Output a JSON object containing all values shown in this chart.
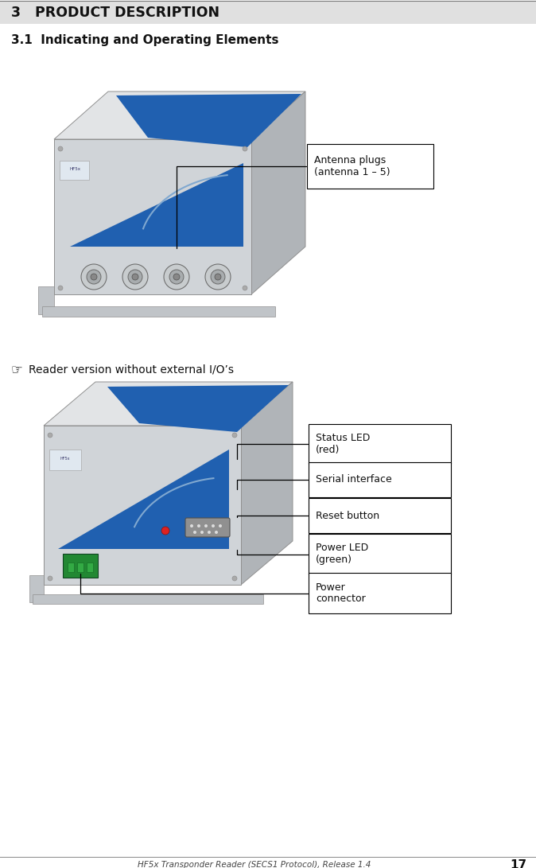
{
  "bg_color": "#ffffff",
  "header_bg": "#e0e0e0",
  "header_text": "3   PRODUCT DESCRIPTION",
  "header_text_color": "#111111",
  "header_fontsize": 12.5,
  "subheader_text": "3.1  Indicating and Operating Elements",
  "subheader_fontsize": 11,
  "reader_note_symbol": "☞",
  "reader_note_text": "Reader version without external I/O’s",
  "reader_note_fontsize": 10,
  "footer_text": "HF5x Transponder Reader (SECS1 Protocol), Release 1.4",
  "footer_page": "17",
  "footer_fontsize": 7.5,
  "box1_label": "Antenna plugs\n(antenna 1 – 5)",
  "box2_labels": [
    "Status LED\n(red)",
    "Serial interface",
    "Reset button",
    "Power LED\n(green)",
    "Power\nconnector"
  ],
  "box_border_color": "#000000",
  "box_bg_color": "#ffffff",
  "line_color": "#000000",
  "dev_front_color": "#d0d4d8",
  "dev_top_color": "#e2e4e6",
  "dev_side_color": "#b0b4b8",
  "dev_edge_color": "#909090",
  "dev_blue": "#2060b0",
  "dev_blue_dark": "#1040a0",
  "dev_foot_color": "#c0c4c8"
}
